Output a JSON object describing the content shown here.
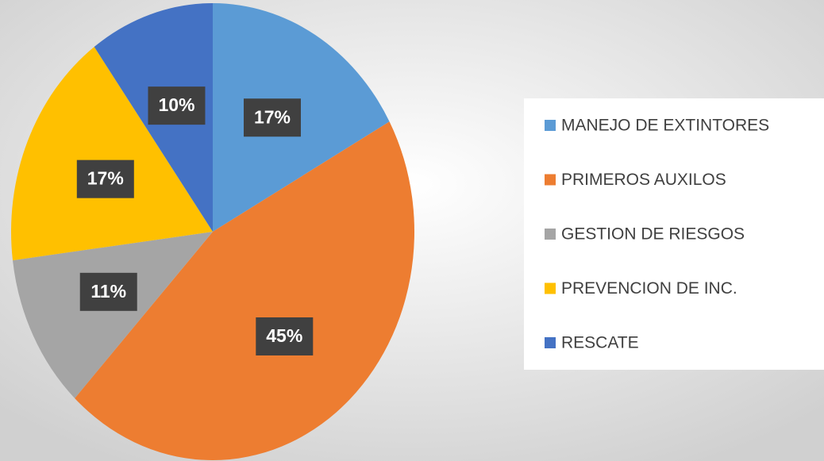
{
  "chart_data": {
    "type": "pie",
    "categories": [
      "MANEJO DE EXTINTORES",
      "PRIMEROS AUXILOS",
      "GESTION DE RIESGOS",
      "PREVENCION DE INC.",
      "RESCATE"
    ],
    "values": [
      17,
      45,
      11,
      17,
      10
    ],
    "value_labels": [
      "17%",
      "45%",
      "11%",
      "17%",
      "10%"
    ],
    "colors": [
      "#5b9bd5",
      "#ed7d31",
      "#a5a5a5",
      "#ffc000",
      "#4472c4"
    ],
    "legend": "right"
  }
}
